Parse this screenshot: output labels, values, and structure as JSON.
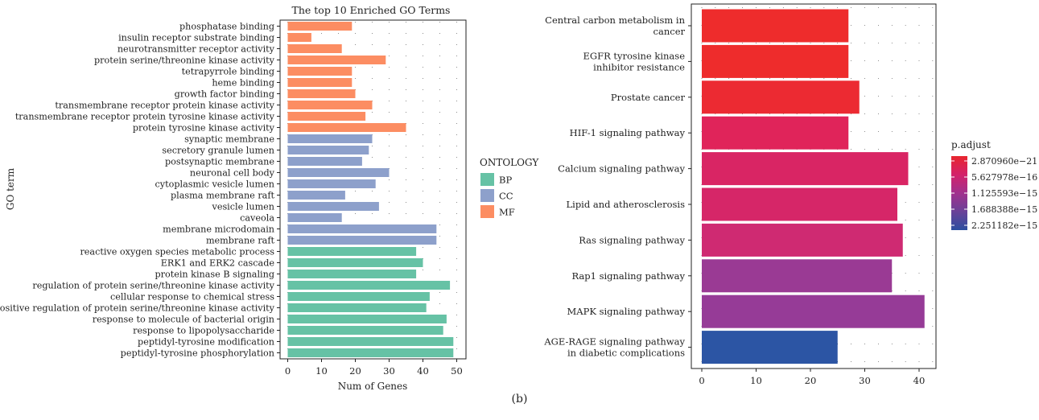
{
  "figure_label": "(b)",
  "chart_data": [
    {
      "type": "bar",
      "orientation": "horizontal",
      "title": "The top 10 Enriched GO Terms",
      "xlabel": "Num of Genes",
      "ylabel": "GO term",
      "xlim": [
        0,
        51
      ],
      "xticks": [
        "0",
        "10",
        "20",
        "30",
        "40",
        "50"
      ],
      "xtick_values": [
        0,
        10,
        20,
        30,
        40,
        50
      ],
      "legend": {
        "title": "ONTOLOGY",
        "placement": "right",
        "entries": [
          "BP",
          "CC",
          "MF"
        ]
      },
      "colors": {
        "BP": "#66c2a5",
        "CC": "#8da0cb",
        "MF": "#fc8d62"
      },
      "categories": [
        "phosphatase binding",
        "insulin receptor substrate binding",
        "neurotransmitter receptor activity",
        "protein serine/threonine kinase activity",
        "tetrapyrrole binding",
        "heme binding",
        "growth factor binding",
        "transmembrane receptor protein kinase activity",
        "transmembrane receptor protein tyrosine kinase activity",
        "protein tyrosine kinase activity",
        "synaptic membrane",
        "secretory granule lumen",
        "postsynaptic membrane",
        "neuronal cell body",
        "cytoplasmic vesicle lumen",
        "plasma membrane raft",
        "vesicle lumen",
        "caveola",
        "membrane microdomain",
        "membrane raft",
        "reactive oxygen species metabolic process",
        "ERK1 and ERK2 cascade",
        "protein kinase B signaling",
        "regulation of protein serine/threonine kinase activity",
        "cellular response to chemical stress",
        "positive regulation of protein serine/threonine kinase activity",
        "response to molecule of bacterial origin",
        "response to lipopolysaccharide",
        "peptidyl-tyrosine modification",
        "peptidyl-tyrosine phosphorylation"
      ],
      "values": [
        19,
        7,
        16,
        29,
        19,
        19,
        20,
        25,
        23,
        35,
        25,
        24,
        22,
        30,
        26,
        17,
        27,
        16,
        44,
        44,
        38,
        40,
        38,
        48,
        42,
        41,
        47,
        46,
        49,
        49
      ],
      "ontology": [
        "MF",
        "MF",
        "MF",
        "MF",
        "MF",
        "MF",
        "MF",
        "MF",
        "MF",
        "MF",
        "CC",
        "CC",
        "CC",
        "CC",
        "CC",
        "CC",
        "CC",
        "CC",
        "CC",
        "CC",
        "BP",
        "BP",
        "BP",
        "BP",
        "BP",
        "BP",
        "BP",
        "BP",
        "BP",
        "BP"
      ]
    },
    {
      "type": "bar",
      "orientation": "horizontal",
      "title": "",
      "xlabel": "",
      "ylabel": "",
      "xlim": [
        0,
        43
      ],
      "xticks": [
        "0",
        "10",
        "20",
        "30",
        "40"
      ],
      "xtick_values": [
        0,
        10,
        20,
        30,
        40
      ],
      "categories": [
        [
          "Central carbon metabolism in",
          "cancer"
        ],
        [
          "EGFR tyrosine kinase",
          "inhibitor resistance"
        ],
        [
          "Prostate cancer"
        ],
        [
          "HIF-1 signaling pathway"
        ],
        [
          "Calcium signaling pathway"
        ],
        [
          "Lipid and atherosclerosis"
        ],
        [
          "Ras signaling pathway"
        ],
        [
          "Rap1 signaling pathway"
        ],
        [
          "MAPK signaling pathway"
        ],
        [
          "AGE-RAGE signaling pathway",
          "in diabetic complications"
        ]
      ],
      "values": [
        27,
        27,
        29,
        27,
        38,
        36,
        37,
        35,
        41,
        25
      ],
      "colors": [
        "#ee2c2c",
        "#ee2c2c",
        "#ec2a32",
        "#e0245a",
        "#d92564",
        "#d62668",
        "#cf2a72",
        "#9a3a94",
        "#963b97",
        "#2c55a4"
      ],
      "legend": {
        "title": "p.adjust",
        "placement": "right",
        "entries": [
          "2.870960e−21",
          "5.627978e−16",
          "1.125593e−15",
          "1.688388e−15",
          "2.251182e−15"
        ],
        "gradient": [
          "#e8262f",
          "#d3226a",
          "#a1318e",
          "#6a4198",
          "#2b4ea0"
        ]
      }
    }
  ]
}
